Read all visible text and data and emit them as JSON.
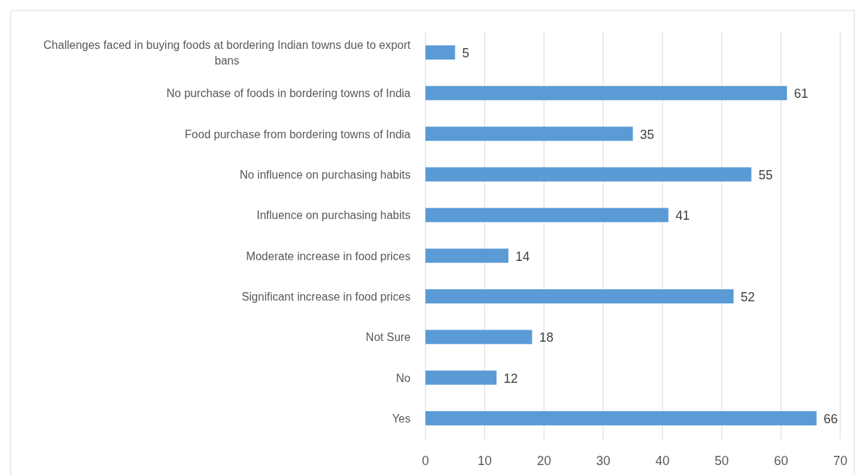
{
  "chart_data": {
    "type": "bar",
    "orientation": "horizontal",
    "categories": [
      "Challenges faced in buying foods at bordering Indian towns due to export bans",
      "No purchase of foods in bordering towns of India",
      "Food purchase from bordering towns of India",
      "No influence on purchasing habits",
      "Influence on purchasing habits",
      "Moderate increase in food prices",
      "Significant increase in food prices",
      "Not Sure",
      "No",
      "Yes"
    ],
    "values": [
      5,
      61,
      35,
      55,
      41,
      14,
      52,
      18,
      12,
      66
    ],
    "color": "#5b9bd5",
    "xlim": [
      0,
      70
    ],
    "xticks": [
      0,
      10,
      20,
      30,
      40,
      50,
      60,
      70
    ],
    "grid": "x",
    "data_labels": true
  }
}
